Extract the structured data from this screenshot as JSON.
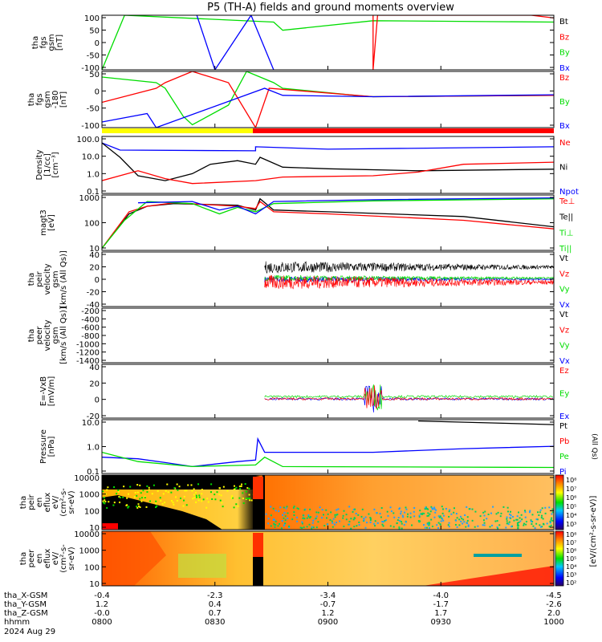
{
  "title": "P5 (TH-A) fields and ground moments overview",
  "colors": {
    "black": "#000000",
    "red": "#ff0000",
    "green": "#00dd00",
    "blue": "#0000ff",
    "yellow": "#ffff00",
    "orange": "#ff8c00",
    "bar_gray": "#ffffff"
  },
  "bottom_axis": {
    "rows": [
      {
        "label": "tha_X-GSM",
        "values": [
          "-0.4",
          "-2.3",
          "-3.4",
          "-4.0",
          "-4.5"
        ]
      },
      {
        "label": "tha_Y-GSM",
        "values": [
          "1.2",
          "0.4",
          "-0.7",
          "-1.7",
          "-2.6"
        ]
      },
      {
        "label": "tha_Z-GSM",
        "values": [
          "-0.0",
          "0.7",
          "1.2",
          "1.7",
          "2.0"
        ]
      },
      {
        "label": "hhmm",
        "values": [
          "0800",
          "0830",
          "0900",
          "0930",
          "1000"
        ]
      }
    ],
    "date": "2024 Aug 29"
  },
  "colorbar": {
    "label": "[eV/(cm²-s-sr-eV)]",
    "ticks_top": [
      "10⁸",
      "10⁷",
      "10⁶",
      "10⁵",
      "10⁴",
      "10³"
    ],
    "ticks_bottom": [
      "10⁸",
      "10⁷",
      "10⁶",
      "10⁵",
      "10⁴",
      "10³",
      "10²"
    ]
  },
  "chart_data": [
    {
      "type": "line",
      "panel": "fgs-gsm",
      "ylabel": [
        "tha",
        "fgs",
        "gsm",
        "[nT]"
      ],
      "yticks": [
        "100",
        "50",
        "0",
        "-50",
        "-100"
      ],
      "ylim": [
        -100,
        100
      ],
      "legend": [
        {
          "name": "Bt",
          "color": "#000000"
        },
        {
          "name": "Bz",
          "color": "#ff0000"
        },
        {
          "name": "By",
          "color": "#00dd00"
        },
        {
          "name": "Bx",
          "color": "#0000ff"
        }
      ],
      "x": [
        "0800",
        "0830",
        "0900",
        "0930",
        "1000"
      ],
      "series": [
        {
          "name": "By",
          "points": [
            [
              0,
              -100
            ],
            [
              5,
              100
            ],
            [
              38,
              75
            ],
            [
              40,
              45
            ],
            [
              60,
              80
            ],
            [
              100,
              75
            ]
          ]
        },
        {
          "name": "Bx",
          "points": [
            [
              21,
              100
            ],
            [
              25,
              -100
            ],
            [
              33,
              100
            ],
            [
              38,
              -100
            ]
          ]
        },
        {
          "name": "Bz",
          "points": [
            [
              60,
              100
            ],
            [
              60,
              -100
            ],
            [
              61,
              100
            ],
            [
              95,
              100
            ],
            [
              100,
              90
            ]
          ]
        }
      ]
    },
    {
      "type": "line",
      "panel": "fgs-gsm-zoom",
      "ylabel": [
        "tha",
        "fgs",
        "gsm",
        "-180",
        "[nT]"
      ],
      "yticks": [
        "50",
        "0",
        "-50",
        "-100"
      ],
      "ylim": [
        -120,
        80
      ],
      "legend": [
        {
          "name": "Bz",
          "color": "#ff0000"
        },
        {
          "name": "By",
          "color": "#00dd00"
        },
        {
          "name": "Bx",
          "color": "#0000ff"
        }
      ],
      "series": [
        {
          "name": "By",
          "points": [
            [
              0,
              60
            ],
            [
              12,
              40
            ],
            [
              14,
              20
            ],
            [
              18,
              -80
            ],
            [
              20,
              -110
            ],
            [
              28,
              -40
            ],
            [
              32,
              80
            ],
            [
              38,
              40
            ],
            [
              40,
              20
            ],
            [
              56,
              -5
            ],
            [
              60,
              -10
            ],
            [
              100,
              -5
            ]
          ]
        },
        {
          "name": "Bz",
          "points": [
            [
              0,
              -30
            ],
            [
              12,
              20
            ],
            [
              14,
              40
            ],
            [
              20,
              80
            ],
            [
              28,
              40
            ],
            [
              34,
              -120
            ],
            [
              37,
              20
            ],
            [
              60,
              -10
            ],
            [
              100,
              -5
            ]
          ]
        },
        {
          "name": "Bx",
          "points": [
            [
              0,
              -100
            ],
            [
              10,
              -70
            ],
            [
              12,
              -120
            ],
            [
              36,
              20
            ],
            [
              40,
              -5
            ],
            [
              60,
              -10
            ],
            [
              100,
              -3
            ]
          ]
        }
      ]
    },
    {
      "type": "line",
      "panel": "density",
      "ylabel": [
        "Density",
        "[1/cc]",
        "[cm⁻³]"
      ],
      "yticks": [
        "100.0",
        "10.0",
        "1.0",
        "0.1"
      ],
      "log": true,
      "ylim": [
        0.05,
        150
      ],
      "legend": [
        {
          "name": "Ne",
          "color": "#ff0000"
        },
        {
          "name": "Ni",
          "color": "#000000"
        },
        {
          "name": "Npot",
          "color": "#0000ff"
        }
      ],
      "series": [
        {
          "name": "Npot",
          "points": [
            [
              0,
              60
            ],
            [
              4,
              22
            ],
            [
              34,
              20
            ],
            [
              34,
              35
            ],
            [
              50,
              25
            ],
            [
              100,
              35
            ]
          ]
        },
        {
          "name": "Ni",
          "points": [
            [
              0,
              60
            ],
            [
              4,
              8
            ],
            [
              8,
              0.6
            ],
            [
              14,
              0.3
            ],
            [
              20,
              0.8
            ],
            [
              24,
              3
            ],
            [
              30,
              5
            ],
            [
              34,
              3
            ],
            [
              35,
              8
            ],
            [
              40,
              2
            ],
            [
              50,
              1.6
            ],
            [
              70,
              1.2
            ],
            [
              100,
              1.5
            ]
          ]
        },
        {
          "name": "Ne",
          "points": [
            [
              0,
              0.3
            ],
            [
              8,
              1.2
            ],
            [
              14,
              0.4
            ],
            [
              20,
              0.2
            ],
            [
              34,
              0.3
            ],
            [
              40,
              0.5
            ],
            [
              60,
              0.6
            ],
            [
              70,
              1
            ],
            [
              80,
              3
            ],
            [
              100,
              4
            ]
          ]
        }
      ]
    },
    {
      "type": "line",
      "panel": "temperature",
      "ylabel": [
        "magt3",
        "[eV]"
      ],
      "yticks": [
        "1000",
        "100",
        "10"
      ],
      "log": true,
      "ylim": [
        8,
        3000
      ],
      "legend": [
        {
          "name": "Te⊥",
          "color": "#ff0000"
        },
        {
          "name": "Te||",
          "color": "#000000"
        },
        {
          "name": "Ti⊥",
          "color": "#00dd00"
        },
        {
          "name": "Ti||",
          "color": "#00dd00"
        }
      ],
      "series": [
        {
          "name": "Te||",
          "points": [
            [
              0,
              10
            ],
            [
              6,
              400
            ],
            [
              10,
              900
            ],
            [
              16,
              1200
            ],
            [
              30,
              1000
            ],
            [
              34,
              600
            ],
            [
              35,
              2000
            ],
            [
              38,
              600
            ],
            [
              50,
              500
            ],
            [
              80,
              300
            ],
            [
              100,
              100
            ]
          ]
        },
        {
          "name": "Te⊥",
          "points": [
            [
              0,
              10
            ],
            [
              6,
              500
            ],
            [
              10,
              900
            ],
            [
              16,
              1300
            ],
            [
              30,
              900
            ],
            [
              34,
              700
            ],
            [
              35,
              1500
            ],
            [
              38,
              500
            ],
            [
              50,
              400
            ],
            [
              80,
              200
            ],
            [
              100,
              80
            ]
          ]
        },
        {
          "name": "Ti⊥",
          "points": [
            [
              0,
              10
            ],
            [
              5,
              200
            ],
            [
              10,
              1500
            ],
            [
              20,
              1200
            ],
            [
              26,
              400
            ],
            [
              30,
              800
            ],
            [
              34,
              500
            ],
            [
              38,
              1200
            ],
            [
              60,
              1600
            ],
            [
              100,
              2000
            ]
          ]
        },
        {
          "name": "Npot",
          "points": [
            [
              8,
              1300
            ],
            [
              20,
              1500
            ],
            [
              26,
              600
            ],
            [
              30,
              900
            ],
            [
              34,
              400
            ],
            [
              38,
              1500
            ],
            [
              60,
              1800
            ],
            [
              100,
              2200
            ]
          ]
        }
      ]
    },
    {
      "type": "line",
      "panel": "peir-velocity",
      "ylabel": [
        "tha",
        "peir",
        "velocity",
        "gsm",
        "[km/s (All Qs)]"
      ],
      "yticks": [
        "40",
        "20",
        "0",
        "-20",
        "-40"
      ],
      "ylim": [
        -45,
        45
      ],
      "legend": [
        {
          "name": "Vt",
          "color": "#000000"
        },
        {
          "name": "Vz",
          "color": "#ff0000"
        },
        {
          "name": "Vy",
          "color": "#00dd00"
        },
        {
          "name": "Vx",
          "color": "#0000ff"
        }
      ]
    },
    {
      "type": "line",
      "panel": "peer-velocity",
      "ylabel": [
        "tha",
        "peer",
        "velocity",
        "gsm",
        "[km/s (All Qs)]"
      ],
      "yticks": [
        "-200",
        "-400",
        "-600",
        "-800",
        "-1000",
        "-1200",
        "-1400"
      ],
      "ylim": [
        -1450,
        -150
      ],
      "legend": [
        {
          "name": "Vt",
          "color": "#000000"
        },
        {
          "name": "Vz",
          "color": "#ff0000"
        },
        {
          "name": "Vy",
          "color": "#00dd00"
        },
        {
          "name": "Vx",
          "color": "#0000ff"
        }
      ]
    },
    {
      "type": "line",
      "panel": "efield",
      "ylabel": [
        "E=-VxB",
        "[mV/m]"
      ],
      "yticks": [
        "40",
        "20",
        "0",
        "-20"
      ],
      "ylim": [
        -25,
        45
      ],
      "legend": [
        {
          "name": "Ez",
          "color": "#ff0000"
        },
        {
          "name": "Ey",
          "color": "#00dd00"
        },
        {
          "name": "Ex",
          "color": "#0000ff"
        }
      ]
    },
    {
      "type": "line",
      "panel": "pressure",
      "ylabel": [
        "Pressure",
        "[nPa]"
      ],
      "yticks": [
        "10.0",
        "1.0",
        "0.1"
      ],
      "log": true,
      "ylim": [
        0.015,
        30
      ],
      "legend": [
        {
          "name": "Pt",
          "color": "#000000"
        },
        {
          "name": "Pb",
          "color": "#ff0000"
        },
        {
          "name": "Pe",
          "color": "#00dd00"
        },
        {
          "name": "Pi",
          "color": "#0000ff"
        }
      ],
      "legend_note": "(All Qs)",
      "series": [
        {
          "name": "Pi",
          "points": [
            [
              0,
              0.15
            ],
            [
              8,
              0.12
            ],
            [
              14,
              0.07
            ],
            [
              20,
              0.04
            ],
            [
              30,
              0.08
            ],
            [
              34,
              0.1
            ],
            [
              34.5,
              2
            ],
            [
              36,
              0.3
            ],
            [
              60,
              0.3
            ],
            [
              80,
              0.5
            ],
            [
              100,
              0.7
            ]
          ]
        },
        {
          "name": "Pe",
          "points": [
            [
              0,
              0.3
            ],
            [
              8,
              0.08
            ],
            [
              20,
              0.04
            ],
            [
              34,
              0.05
            ],
            [
              36,
              0.15
            ],
            [
              40,
              0.04
            ],
            [
              100,
              0.035
            ]
          ]
        },
        {
          "name": "Pt",
          "points": [
            [
              70,
              25
            ],
            [
              100,
              15
            ]
          ]
        }
      ]
    },
    {
      "type": "heatmap",
      "panel": "peir-en-eflux",
      "ylabel": [
        "tha",
        "peir",
        "en",
        "eflux",
        "eV/",
        "(cm²-s-",
        "sr-eV)"
      ],
      "yticks": [
        "10000",
        "1000",
        "100",
        "10"
      ]
    },
    {
      "type": "heatmap",
      "panel": "peer-en-eflux",
      "ylabel": [
        "tha",
        "peer",
        "en",
        "eflux",
        "eV/",
        "(cm²-s-",
        "sr-eV)"
      ],
      "yticks": [
        "10000",
        "1000",
        "100",
        "10"
      ]
    }
  ]
}
